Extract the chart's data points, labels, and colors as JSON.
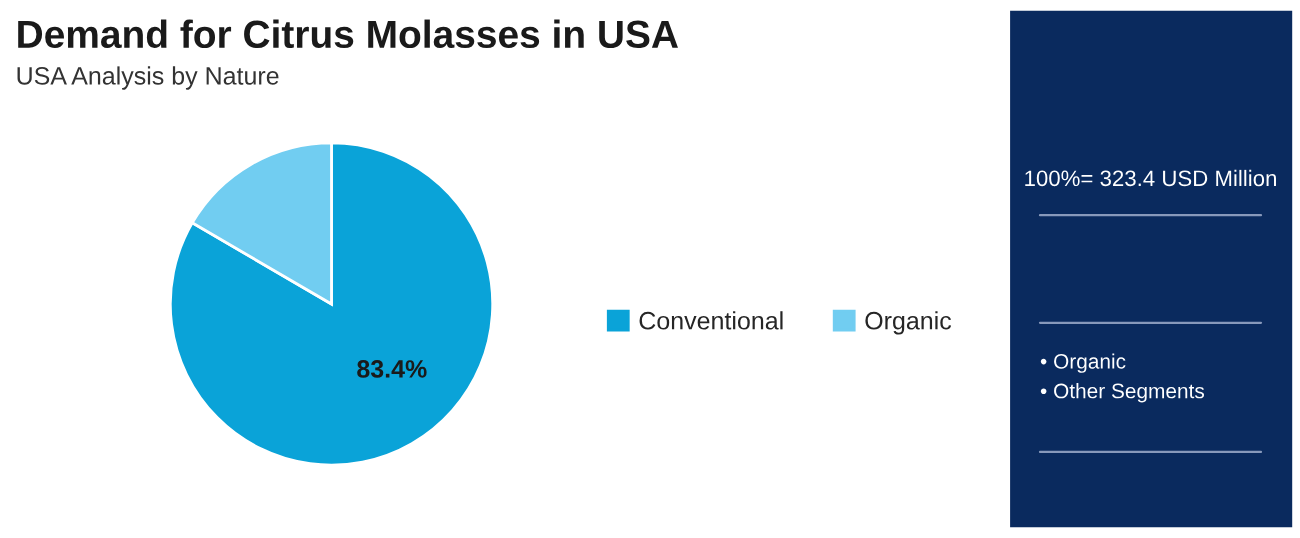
{
  "chart_data": {
    "type": "pie",
    "title": "Demand for Citrus Molasses in USA",
    "subtitle": "USA Analysis by Nature",
    "categories": [
      "Conventional",
      "Organic"
    ],
    "values": [
      83.4,
      16.6
    ],
    "colors": [
      "#0aa3d8",
      "#71cdf1"
    ],
    "value_labels": [
      "83.4%",
      null
    ],
    "legend": "right",
    "annotations": [
      "100%= 323.4 USD Million",
      "• Organic",
      "• Other Segments"
    ]
  }
}
